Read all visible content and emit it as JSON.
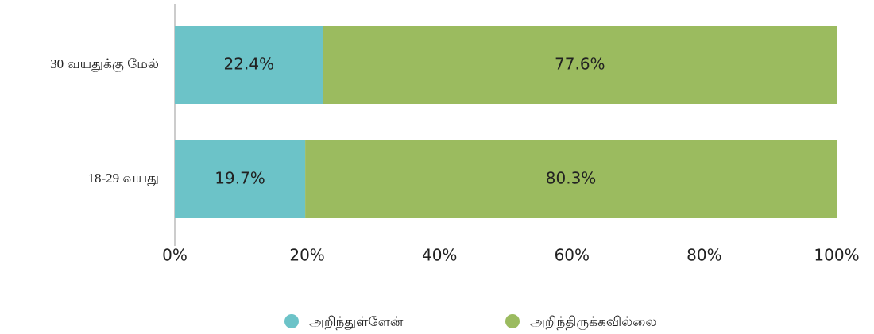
{
  "chart_data": {
    "type": "stacked-bar-horizontal",
    "categories": [
      "30 வயதுக்கு மேல்",
      "18-29 வயது"
    ],
    "series": [
      {
        "name": "அறிந்துள்ளேன்",
        "color": "#6cc3c8",
        "values": [
          22.4,
          19.7
        ],
        "value_labels": [
          "22.4%",
          "19.7%"
        ]
      },
      {
        "name": "அறிந்திருக்கவில்லை",
        "color": "#9bbb5f",
        "values": [
          77.6,
          80.3
        ],
        "value_labels": [
          "77.6%",
          "80.3%"
        ]
      }
    ],
    "xlim": [
      0,
      100
    ],
    "xticks": [
      {
        "value": 0,
        "label": "0%"
      },
      {
        "value": 20,
        "label": "20%"
      },
      {
        "value": 40,
        "label": "40%"
      },
      {
        "value": 60,
        "label": "60%"
      },
      {
        "value": 80,
        "label": "80%"
      },
      {
        "value": 100,
        "label": "100%"
      }
    ],
    "grid": false,
    "legend": "bottom"
  }
}
